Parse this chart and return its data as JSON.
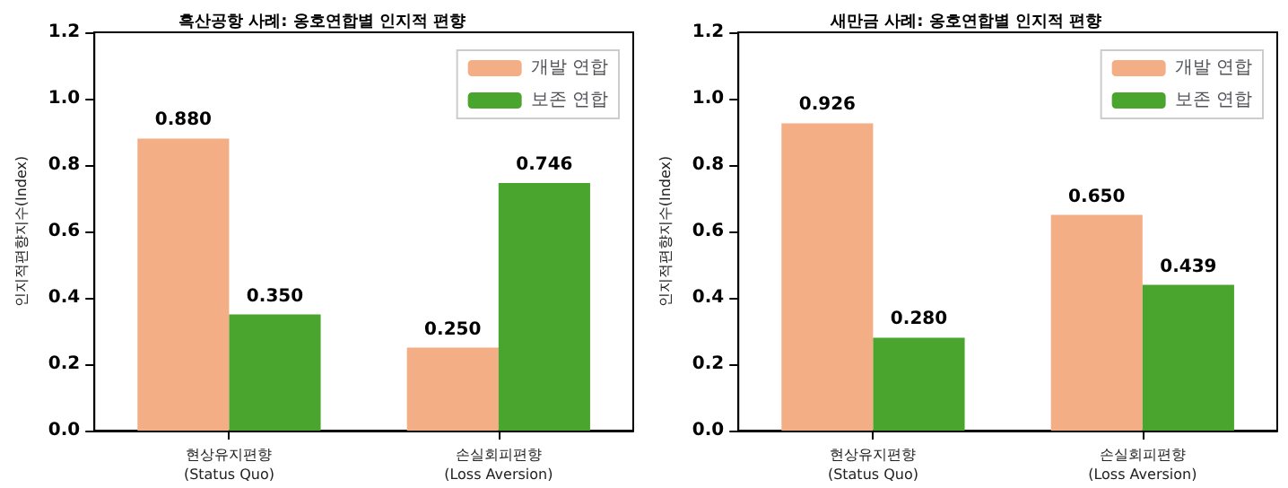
{
  "chart_data": [
    {
      "type": "bar",
      "title": "흑산공항 사례: 옹호연합별 인지적 편향",
      "ylabel": "인지적편향지수(Index)",
      "categories": [
        "현상유지편향\n(Status Quo)",
        "손실회피편향\n(Loss Aversion)"
      ],
      "series": [
        {
          "name": "개발 연합",
          "color": "#f4ae86",
          "values": [
            0.88,
            0.25
          ],
          "value_labels": [
            "0.880",
            "0.250"
          ]
        },
        {
          "name": "보존 연합",
          "color": "#4aa52e",
          "values": [
            0.35,
            0.746
          ],
          "value_labels": [
            "0.350",
            "0.746"
          ]
        }
      ],
      "ylim": [
        0,
        1.2
      ],
      "yticks": [
        "0.0",
        "0.2",
        "0.4",
        "0.6",
        "0.8",
        "1.0",
        "1.2"
      ],
      "legend": "top right"
    },
    {
      "type": "bar",
      "title": "새만금 사례: 옹호연합별 인지적 편향",
      "ylabel": "인지적편향지수(Index)",
      "categories": [
        "현상유지편향\n(Status Quo)",
        "손실회피편향\n(Loss Aversion)"
      ],
      "series": [
        {
          "name": "개발 연합",
          "color": "#f4ae86",
          "values": [
            0.926,
            0.65
          ],
          "value_labels": [
            "0.926",
            "0.650"
          ]
        },
        {
          "name": "보존 연합",
          "color": "#4aa52e",
          "values": [
            0.28,
            0.439
          ],
          "value_labels": [
            "0.280",
            "0.439"
          ]
        }
      ],
      "ylim": [
        0,
        1.2
      ],
      "yticks": [
        "0.0",
        "0.2",
        "0.4",
        "0.6",
        "0.8",
        "1.0",
        "1.2"
      ],
      "legend": "top right"
    }
  ]
}
